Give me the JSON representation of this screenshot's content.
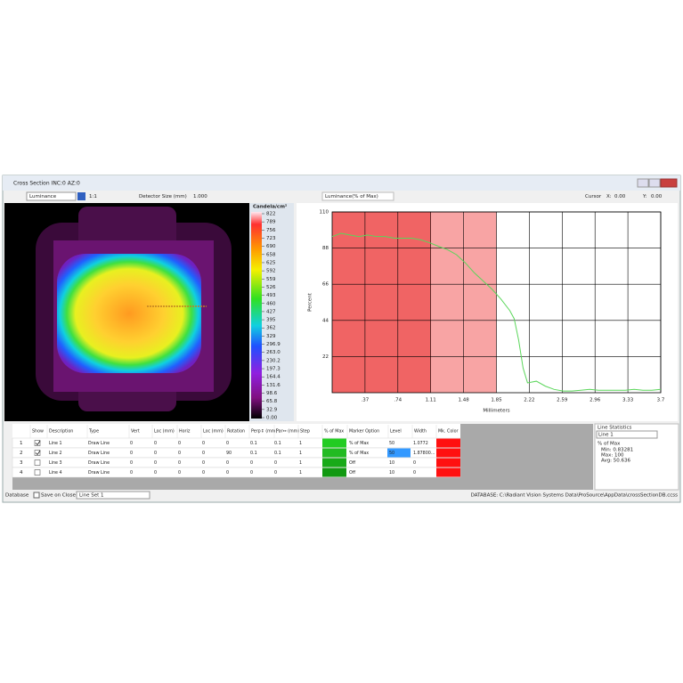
{
  "window": {
    "title": "Cross Section  INC:0  AZ:0"
  },
  "toolbar": {
    "image_mode": "Luminance",
    "zoom": "1:1",
    "detector_label": "Detector Size (mm)",
    "detector_value": "1.000",
    "plot_mode": "Luminance(% of Max)",
    "cursor_label": "Cursor",
    "x_label": "X:",
    "x_value": "0.00",
    "y_label": "Y:",
    "y_value": "0.00"
  },
  "colorbar": {
    "title": "Candela/cm²",
    "labels": [
      "822",
      "789",
      "756",
      "723",
      "690",
      "658",
      "625",
      "592",
      "559",
      "526",
      "493",
      "460",
      "427",
      "395",
      "362",
      "329",
      "296.9",
      "263.0",
      "230.2",
      "197.3",
      "164.4",
      "131.6",
      "98.6",
      "65.8",
      "32.9",
      "0.00"
    ]
  },
  "chart_data": {
    "type": "line",
    "x_label": "Millimeters",
    "y_label": "Percent",
    "x": [
      0,
      0.1,
      0.2,
      0.3,
      0.4,
      0.5,
      0.6,
      0.7,
      0.8,
      0.9,
      1.0,
      1.11,
      1.2,
      1.3,
      1.4,
      1.5,
      1.6,
      1.7,
      1.8,
      1.9,
      2.0,
      2.05,
      2.1,
      2.15,
      2.2,
      2.3,
      2.4,
      2.5,
      2.6,
      2.7,
      2.8,
      2.9,
      3.0,
      3.1,
      3.2,
      3.3,
      3.4,
      3.5,
      3.6,
      3.7
    ],
    "series": [
      {
        "name": "Line 1",
        "color": "#5ad65a",
        "values": [
          95,
          97,
          96,
          95,
          96,
          95,
          95,
          94,
          94,
          94,
          93,
          91,
          89,
          87,
          84,
          79,
          73,
          68,
          63,
          57,
          50,
          45,
          32,
          15,
          6,
          7,
          4,
          2,
          1,
          1,
          1.5,
          2,
          1.5,
          1.5,
          1.5,
          1.5,
          2,
          1.5,
          1.5,
          2
        ]
      }
    ],
    "xlim": [
      0,
      3.7
    ],
    "ylim": [
      0,
      110
    ],
    "xticks": [
      {
        "value": 0.37,
        "label": ".37"
      },
      {
        "value": 0.74,
        "label": ".74"
      },
      1.11,
      1.48,
      1.85,
      2.22,
      2.59,
      2.96,
      3.33,
      3.7
    ],
    "yticks": [
      22,
      44,
      66,
      88,
      110
    ],
    "grid": true,
    "bands": [
      {
        "from": 0,
        "to": 1.11,
        "color": "#f06464"
      },
      {
        "from": 1.11,
        "to": 1.85,
        "color": "#f8a4a4"
      }
    ]
  },
  "table": {
    "columns": [
      "Show",
      "Description",
      "Type",
      "Vert",
      "Loc (mm)",
      "Horiz",
      "Loc (mm)",
      "Rotation",
      "Perp↕ (mm)",
      "Par↔ (mm)",
      "Step",
      "% of Max",
      "Marker Option",
      "Level",
      "Width",
      "Mk. Color"
    ],
    "rows": [
      {
        "number": "1",
        "show": true,
        "cells": [
          "Line 1",
          "Draw Line",
          "0",
          "0",
          "0",
          "0",
          "0",
          "0.1",
          "0.1",
          "1",
          "% of Max",
          "50",
          "1.0772"
        ],
        "max_color": "#22cc22",
        "marker_color": "#ff1010"
      },
      {
        "number": "2",
        "show": true,
        "cells": [
          "Line 2",
          "Draw Line",
          "0",
          "0",
          "0",
          "0",
          "90",
          "0.1",
          "0.1",
          "1",
          "% of Max",
          "50",
          "1.87800..."
        ],
        "max_color": "#22bb22",
        "marker_color": "#ff1010"
      },
      {
        "number": "3",
        "show": false,
        "cells": [
          "Line 3",
          "Draw Line",
          "0",
          "0",
          "0",
          "0",
          "0",
          "0",
          "0",
          "1",
          "Off",
          "10",
          "0"
        ],
        "max_color": "#18aa18",
        "marker_color": "#ff1010"
      },
      {
        "number": "4",
        "show": false,
        "cells": [
          "Line 4",
          "Draw Line",
          "0",
          "0",
          "0",
          "0",
          "0",
          "0",
          "0",
          "1",
          "Off",
          "10",
          "0"
        ],
        "max_color": "#119911",
        "marker_color": "#ff1010"
      }
    ]
  },
  "statistics": {
    "title": "Line Statistics",
    "selection": "Line 1",
    "mode": "% of Max",
    "min": "Min: 0.83281",
    "max": "Max: 100",
    "avg": "Avg: 50.636"
  },
  "statusbar": {
    "database": "Database",
    "save_on_close": "Save on Close",
    "line_set": "Line Set 1",
    "path": "DATABASE: C:\\Radiant Vision Systems Data\\ProSource\\AppData\\crossSectionDB.ccss"
  }
}
